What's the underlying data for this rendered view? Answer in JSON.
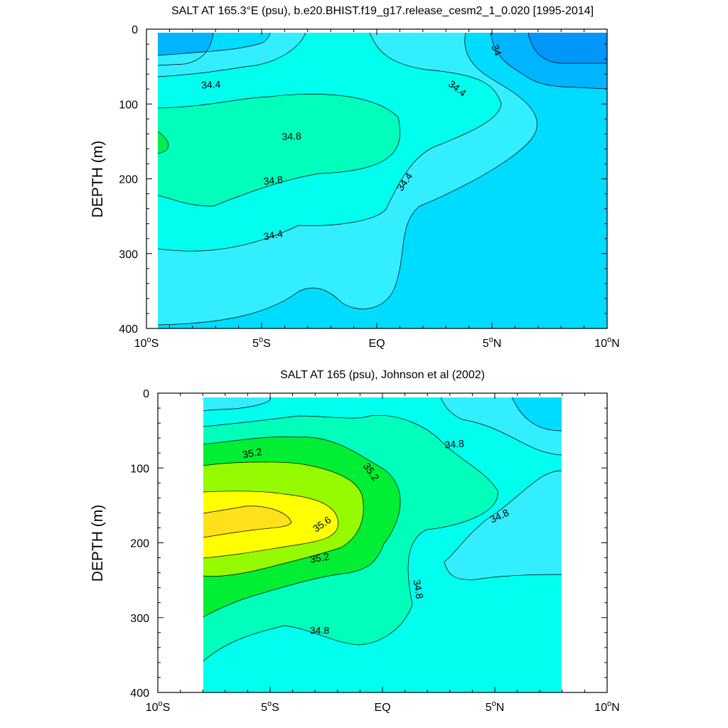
{
  "chart_data": [
    {
      "type": "contour",
      "title": "SALT AT 165.3°E (psu), b.e20.BHIST.f19_g17.release_cesm2_1_0.020 [1995-2014]",
      "ylabel": "DEPTH (m)",
      "xlabel": "",
      "xlim": [
        -10,
        10
      ],
      "ylim": [
        0,
        400
      ],
      "x_ticks": [
        {
          "value": -10,
          "label": "10°S"
        },
        {
          "value": -5,
          "label": "5°S"
        },
        {
          "value": 0,
          "label": "EQ"
        },
        {
          "value": 5,
          "label": "5°N"
        },
        {
          "value": 10,
          "label": "10°N"
        }
      ],
      "y_ticks": [
        0,
        100,
        200,
        300,
        400
      ],
      "data_extent": {
        "x": [
          -10,
          10
        ],
        "y": [
          5,
          400
        ]
      },
      "contour_interval": 0.2,
      "contour_labels": [
        {
          "text": "34",
          "x": 5.2,
          "y": 28,
          "rotate": 70
        },
        {
          "text": "34.4",
          "x": -7.2,
          "y": 74,
          "rotate": -3
        },
        {
          "text": "34.4",
          "x": 3.5,
          "y": 79,
          "rotate": 38
        },
        {
          "text": "34.8",
          "x": -3.7,
          "y": 143,
          "rotate": -2
        },
        {
          "text": "34.8",
          "x": -4.5,
          "y": 202,
          "rotate": -6
        },
        {
          "text": "34.4",
          "x": 1.2,
          "y": 204,
          "rotate": -55
        },
        {
          "text": "34.4",
          "x": -4.5,
          "y": 275,
          "rotate": -10
        }
      ],
      "colors": {
        "s340": "#0096fa",
        "s342": "#00b4ff",
        "s344": "#00dcff",
        "s346": "#33eeff",
        "s348": "#00ffee",
        "s350": "#00ffbb",
        "s352": "#00f050"
      }
    },
    {
      "type": "contour",
      "title": "SALT AT 165 (psu), Johnson et al (2002)",
      "ylabel": "DEPTH (m)",
      "xlabel": "",
      "xlim": [
        -10,
        10
      ],
      "ylim": [
        0,
        400
      ],
      "x_ticks": [
        {
          "value": -10,
          "label": "10°S"
        },
        {
          "value": -5,
          "label": "5°S"
        },
        {
          "value": 0,
          "label": "EQ"
        },
        {
          "value": 5,
          "label": "5°N"
        },
        {
          "value": 10,
          "label": "10°N"
        }
      ],
      "y_ticks": [
        0,
        100,
        200,
        300,
        400
      ],
      "data_extent": {
        "x": [
          -8,
          8
        ],
        "y": [
          5,
          400
        ]
      },
      "contour_interval": 0.2,
      "contour_labels": [
        {
          "text": "35.2",
          "x": -5.8,
          "y": 80,
          "rotate": -10
        },
        {
          "text": "35.2",
          "x": -0.5,
          "y": 105,
          "rotate": 55
        },
        {
          "text": "34.8",
          "x": 3.2,
          "y": 68,
          "rotate": -5
        },
        {
          "text": "35.6",
          "x": -2.7,
          "y": 175,
          "rotate": -35
        },
        {
          "text": "34.8",
          "x": 5.2,
          "y": 164,
          "rotate": -25
        },
        {
          "text": "35.2",
          "x": -2.8,
          "y": 220,
          "rotate": -10
        },
        {
          "text": "34.8",
          "x": 1.6,
          "y": 262,
          "rotate": 80
        },
        {
          "text": "34.8",
          "x": -2.8,
          "y": 317,
          "rotate": 0
        }
      ],
      "colors": {
        "s344": "#00dcff",
        "s346": "#33eeff",
        "s348": "#00ffee",
        "s350": "#00ffbb",
        "s352": "#00ee33",
        "s354": "#96fa00",
        "s356": "#ffff00",
        "s358": "#ffe119"
      }
    }
  ]
}
